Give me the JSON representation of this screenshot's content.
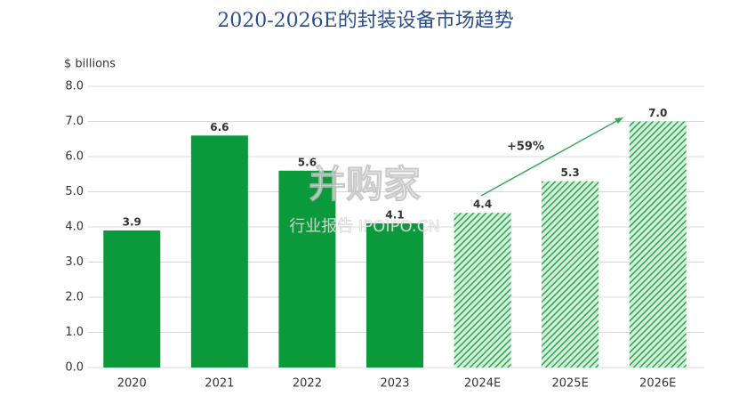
{
  "chart_data": {
    "type": "bar",
    "title": "2020-2026E的封装设备市场趋势",
    "y_label": "$ billions",
    "categories": [
      "2020",
      "2021",
      "2022",
      "2023",
      "2024E",
      "2025E",
      "2026E"
    ],
    "values": [
      3.9,
      6.6,
      5.6,
      4.1,
      4.4,
      5.3,
      7.0
    ],
    "value_labels": [
      "3.9",
      "6.6",
      "5.6",
      "4.1",
      "4.4",
      "5.3",
      "7.0"
    ],
    "hatched": [
      false,
      false,
      false,
      false,
      true,
      true,
      true
    ],
    "color": "#0a9a3c",
    "ylim": [
      0,
      8
    ],
    "yticks": [
      {
        "value": 0,
        "label": "0.0"
      },
      {
        "value": 1,
        "label": "1.0"
      },
      {
        "value": 2,
        "label": "2.0"
      },
      {
        "value": 3,
        "label": "3.0"
      },
      {
        "value": 4,
        "label": "4.0"
      },
      {
        "value": 5,
        "label": "5.0"
      },
      {
        "value": 6,
        "label": "6.0"
      },
      {
        "value": 7,
        "label": "7.0"
      },
      {
        "value": 8,
        "label": "8.0"
      }
    ],
    "grid": true,
    "annotation": "+59%",
    "watermark": "并购家",
    "watermark_sub": "行业报告 IPOIPO.CN"
  }
}
